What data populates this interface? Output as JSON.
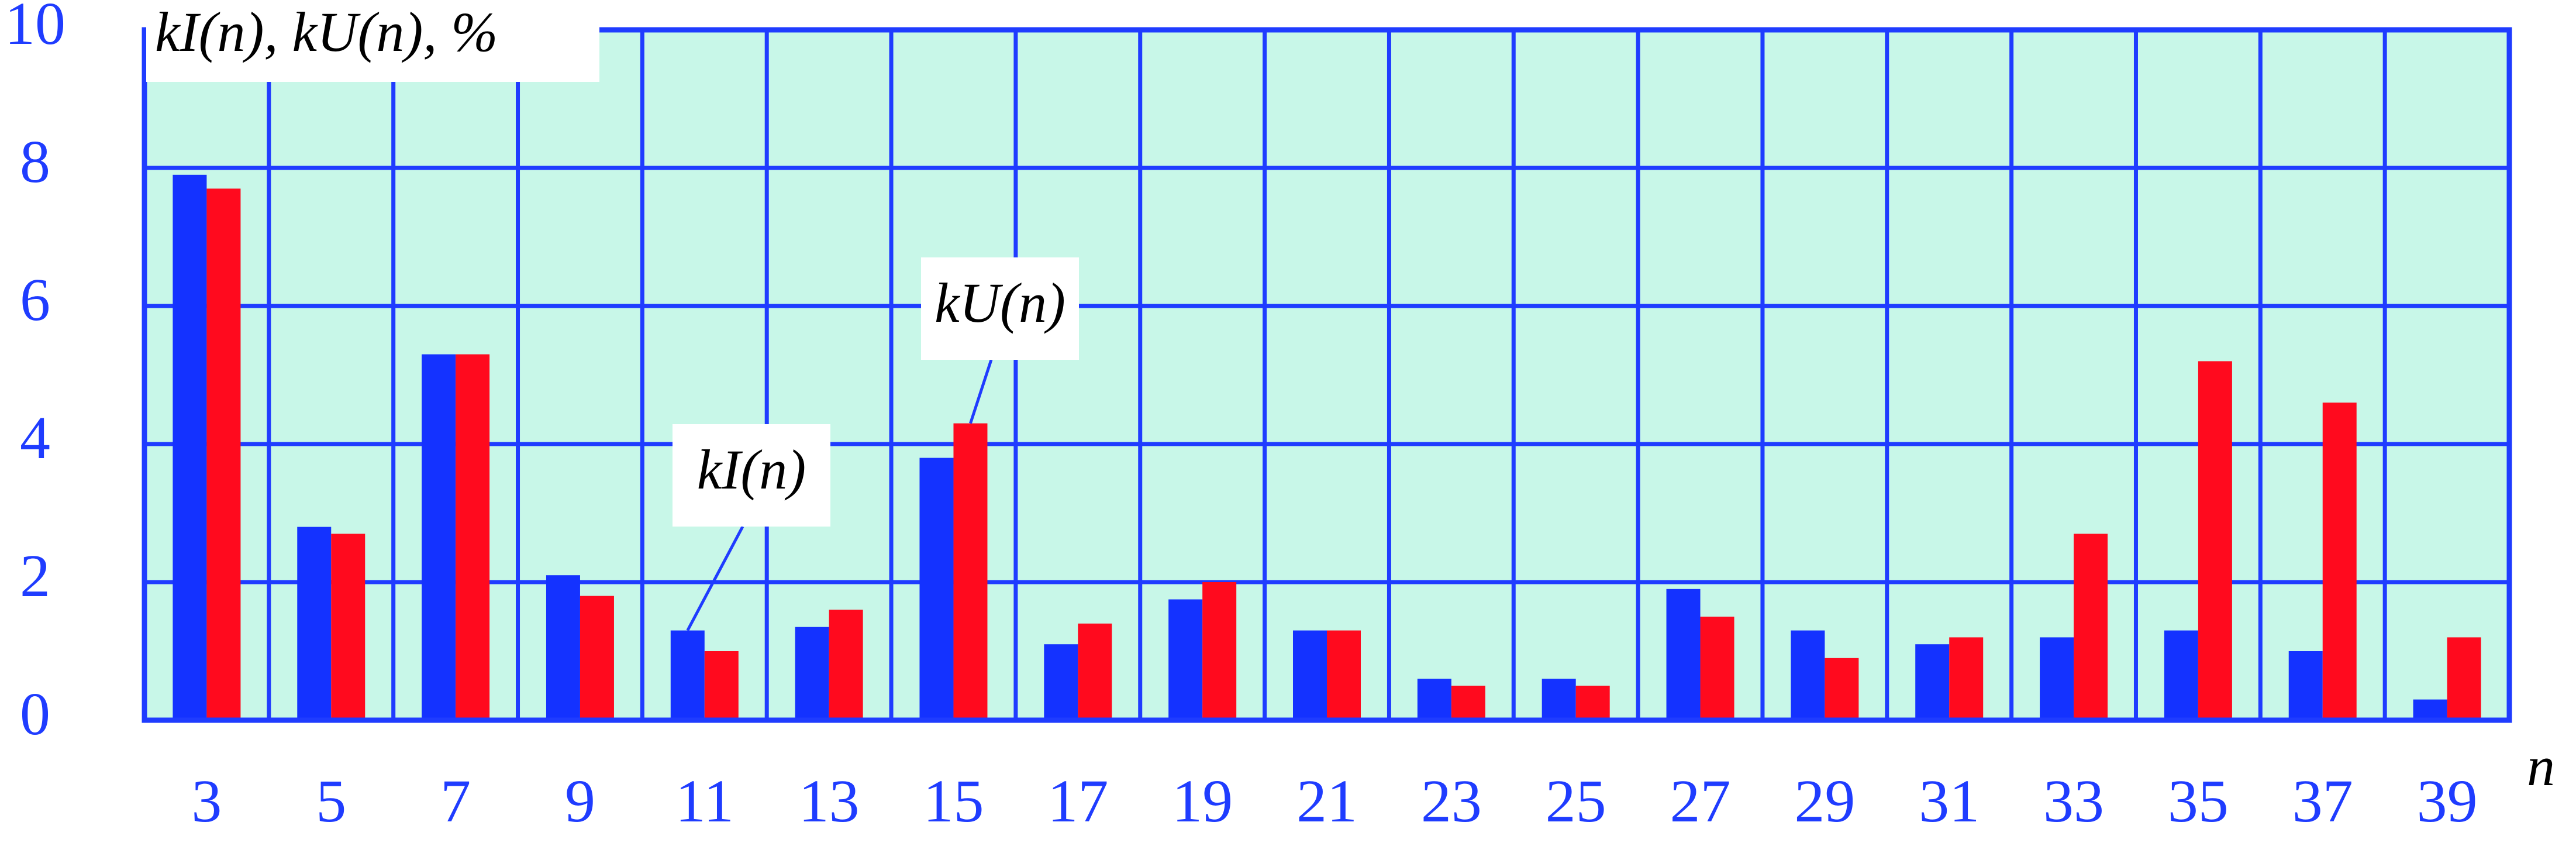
{
  "chart_data": {
    "type": "bar",
    "title": "kI(n), kU(n), %",
    "x_label": "n",
    "categories": [
      "3",
      "5",
      "7",
      "9",
      "11",
      "13",
      "15",
      "17",
      "19",
      "21",
      "23",
      "25",
      "27",
      "29",
      "31",
      "33",
      "35",
      "37",
      "39"
    ],
    "series": [
      {
        "name": "kI(n)",
        "color": "#1432ff",
        "values": [
          7.9,
          2.8,
          5.3,
          2.1,
          1.3,
          1.35,
          3.8,
          1.1,
          1.75,
          1.3,
          0.6,
          0.6,
          1.9,
          1.3,
          1.1,
          1.2,
          1.3,
          1.0,
          0.3
        ]
      },
      {
        "name": "kU(n)",
        "color": "#ff0a1e",
        "values": [
          7.7,
          2.7,
          5.3,
          1.8,
          1.0,
          1.6,
          4.3,
          1.4,
          2.0,
          1.3,
          0.5,
          0.5,
          1.5,
          0.9,
          1.2,
          2.7,
          5.2,
          4.6,
          1.2
        ]
      }
    ],
    "ylim": [
      0,
      10
    ],
    "yticks": [
      0,
      2,
      4,
      6,
      8,
      10
    ],
    "grid": true
  }
}
